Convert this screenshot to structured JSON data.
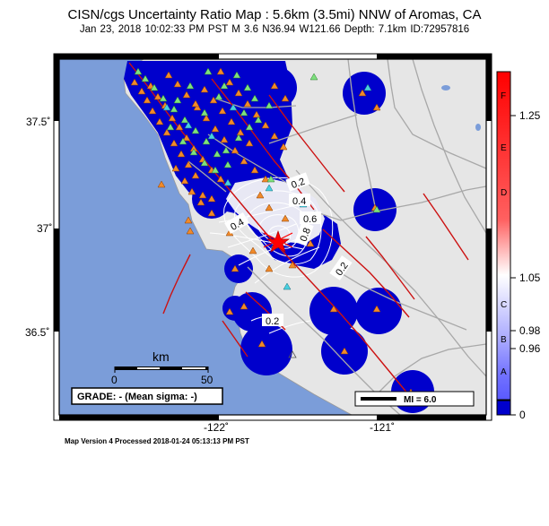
{
  "header": {
    "title": "CISN/cgs Uncertainty Ratio Map : 5.6km (3.5mi) NNW of Aromas, CA",
    "subtitle": "Jan 23, 2018 10:02:33 PM PST   M 3.6   N36.94 W121.66   Depth: 7.1km   ID:72957816"
  },
  "axes": {
    "y_ticks": [
      "37.5˚",
      "37˚",
      "36.5˚"
    ],
    "x_ticks": [
      "-122˚",
      "-121˚"
    ]
  },
  "map": {
    "contour_labels": [
      "0.2",
      "0.4",
      "0.4",
      "0.6",
      "0.8",
      "0.2",
      "0.2"
    ],
    "scalebar": {
      "unit": "km",
      "start": "0",
      "end": "50"
    },
    "grade_text": "GRADE: - (Mean sigma: -)",
    "legend_text": "MI = 6.0",
    "colors": {
      "ocean": "#7b9dd9",
      "land": "#e6e6e6",
      "uncertainty_low": "#0000cc",
      "fault": "#cc1111",
      "station_triangle_orange": "#f08a2a",
      "station_triangle_green": "#7ee07e",
      "station_triangle_cyan": "#48d0e0",
      "epicenter": "#ff0000"
    }
  },
  "colorbar": {
    "letters": [
      "F",
      "E",
      "D",
      "C",
      "B",
      "A"
    ],
    "values": [
      "1.25",
      "1.05",
      "0.98",
      "0.96",
      "0"
    ]
  },
  "footer": "Map Version 4 Processed 2018-01-24 05:13:13 PM PST"
}
